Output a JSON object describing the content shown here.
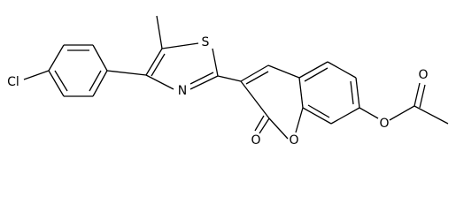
{
  "atoms": [
    "Cl",
    "S",
    "N",
    "O",
    "O",
    "O",
    "O"
  ]
}
